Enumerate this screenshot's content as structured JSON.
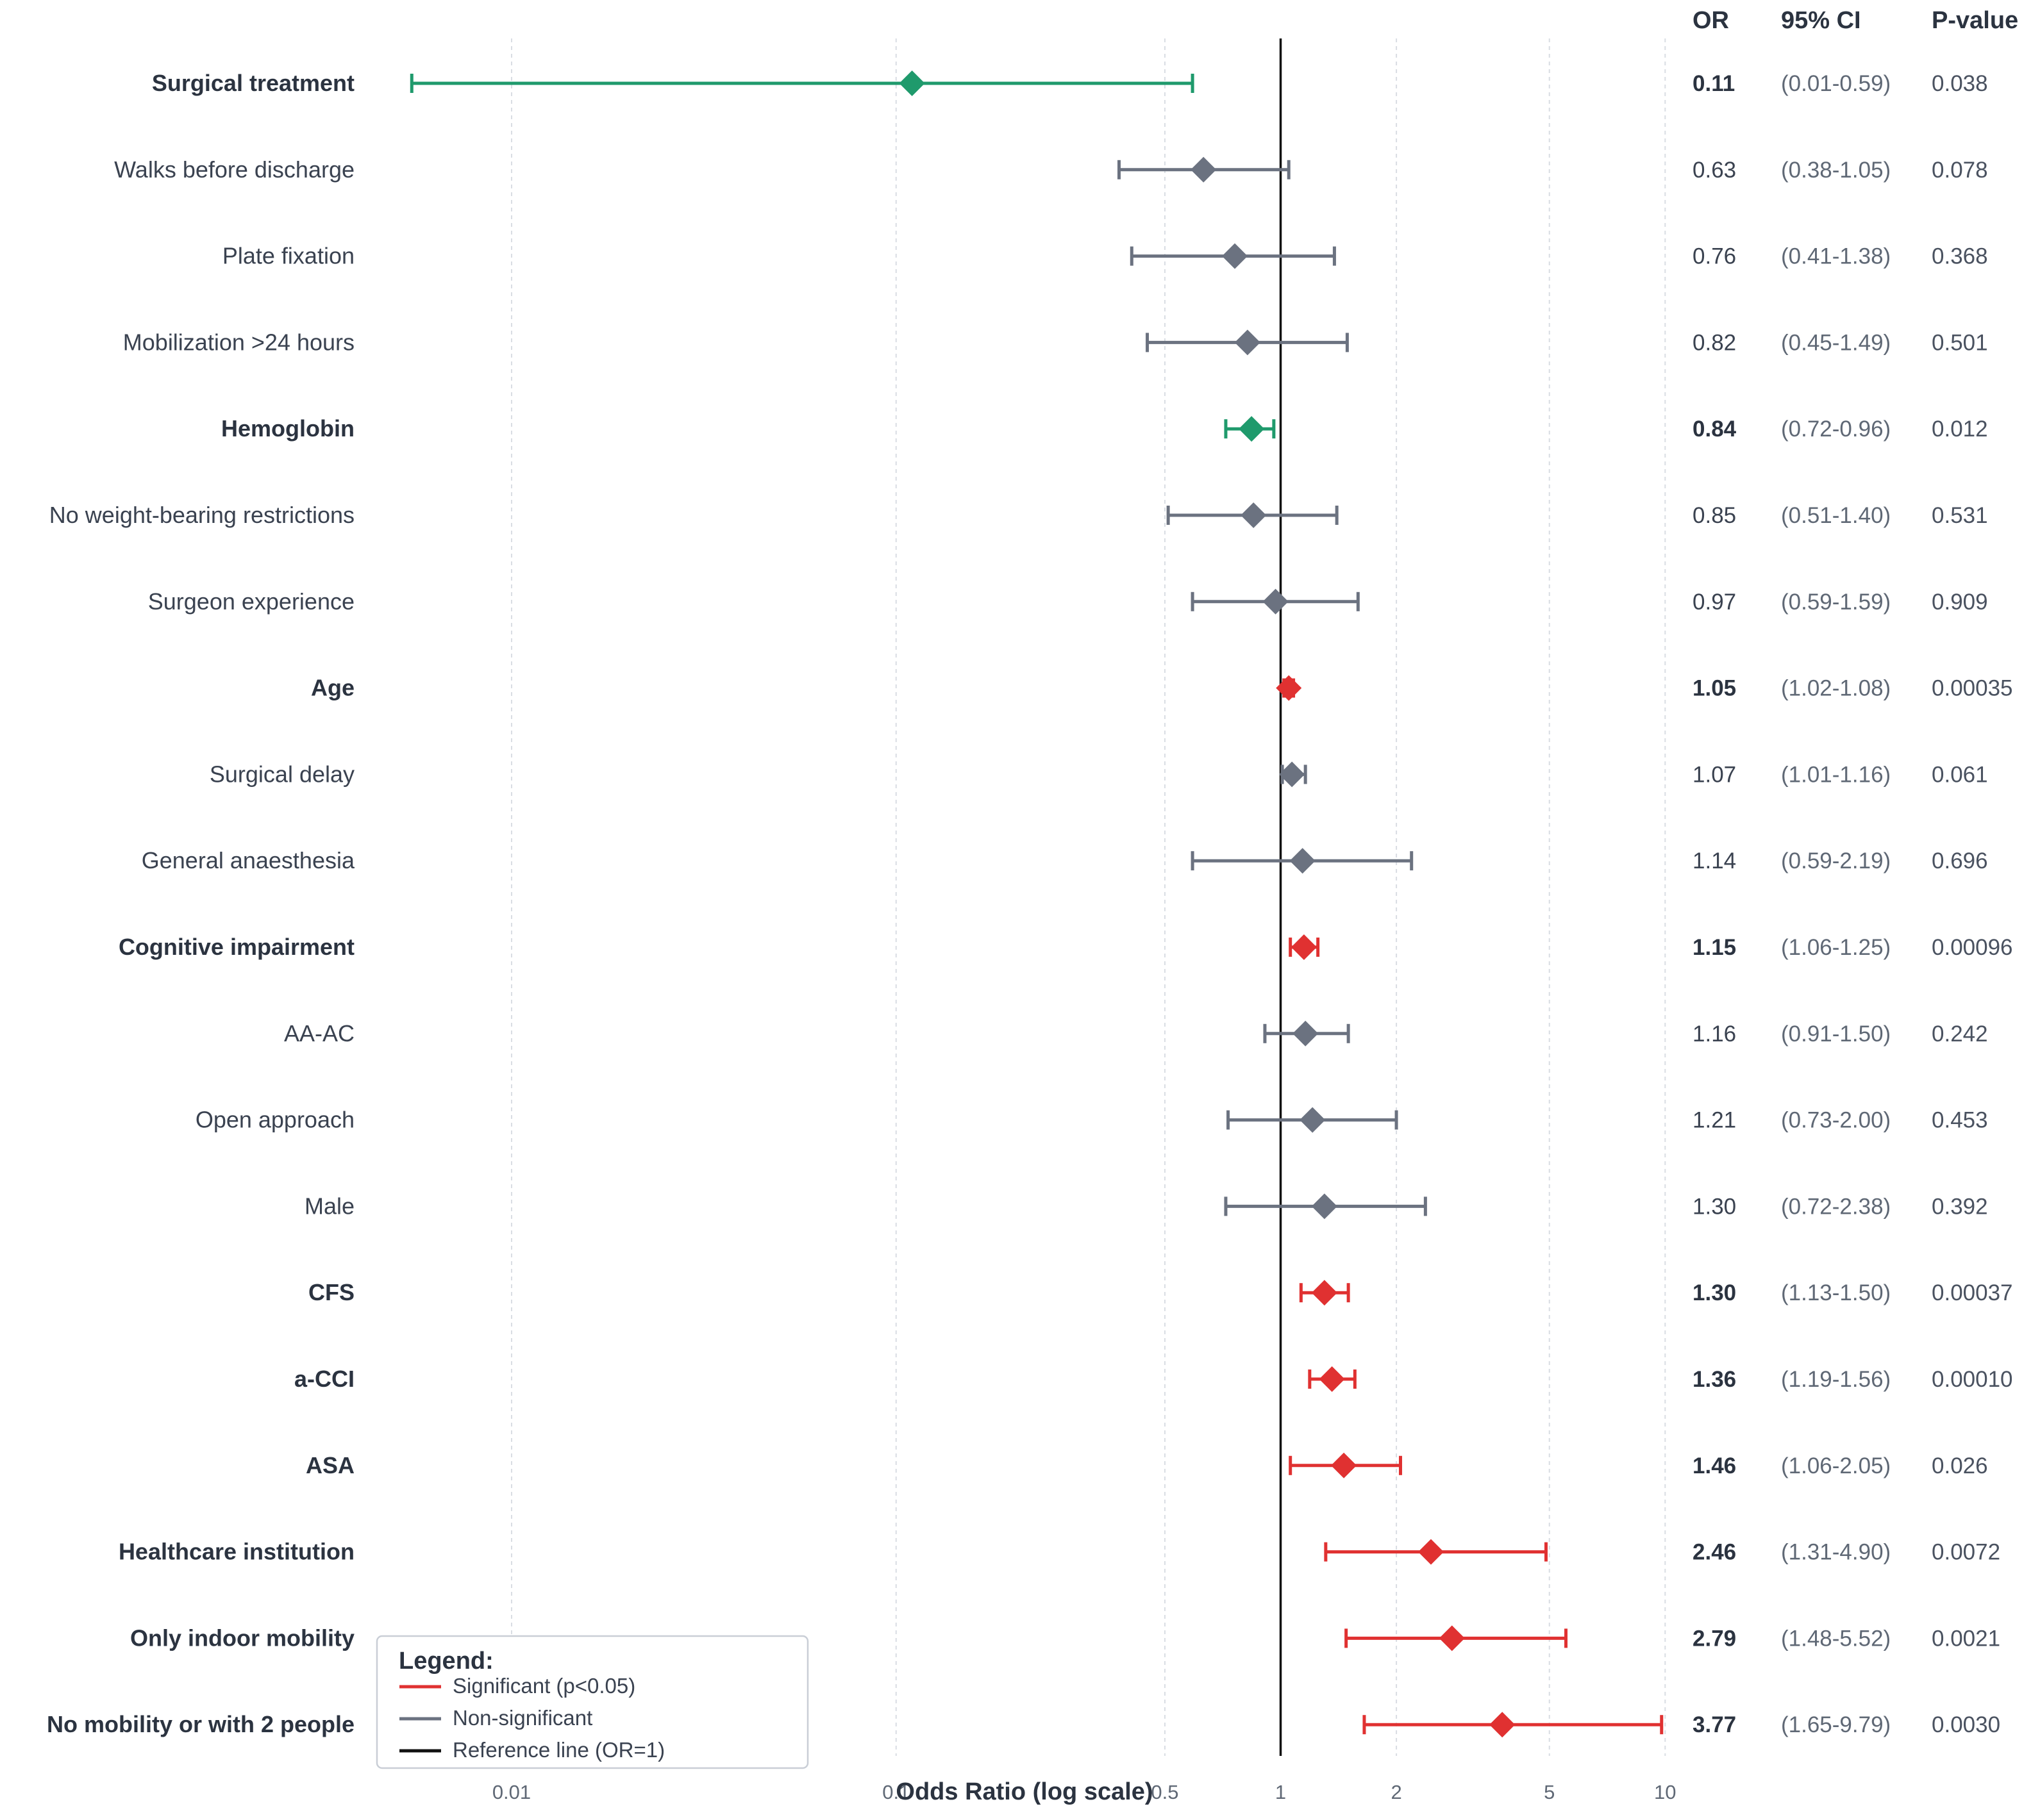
{
  "colors": {
    "significant": "#e03131",
    "protective": "#1f9a6c",
    "nonsignificant": "#6b7280",
    "reference": "#111111",
    "grid": "#d9dde3"
  },
  "chart_data": {
    "type": "forest",
    "xlabel": "Odds Ratio (log scale)",
    "xscale": "log",
    "xlim": [
      0.0045,
      10.5
    ],
    "xticks": [
      {
        "value": 0.01,
        "label": "0.01"
      },
      {
        "value": 0.1,
        "label": "0.1"
      },
      {
        "value": 0.5,
        "label": "0.5"
      },
      {
        "value": 1,
        "label": "1"
      },
      {
        "value": 2,
        "label": "2"
      },
      {
        "value": 5,
        "label": "5"
      },
      {
        "value": 10,
        "label": "10"
      }
    ],
    "reference_value": 1,
    "columns": {
      "or": "OR",
      "ci": "95% CI",
      "p": "P-value"
    },
    "legend": {
      "title": "Legend:",
      "placement": "bottom-left",
      "entries": [
        {
          "label": "Significant (p<0.05)",
          "color_key": "significant"
        },
        {
          "label": "Non-significant",
          "color_key": "nonsignificant"
        },
        {
          "label": "Reference line (OR=1)",
          "color_key": "reference"
        }
      ]
    },
    "rows": [
      {
        "label": "Surgical treatment",
        "or": 0.11,
        "lo": 0.0055,
        "hi": 0.59,
        "or_text": "0.11",
        "ci_text": "(0.01-0.59)",
        "p_text": "0.038",
        "significant": true
      },
      {
        "label": "Walks before discharge",
        "or": 0.63,
        "lo": 0.38,
        "hi": 1.05,
        "or_text": "0.63",
        "ci_text": "(0.38-1.05)",
        "p_text": "0.078",
        "significant": false
      },
      {
        "label": "Plate fixation",
        "or": 0.76,
        "lo": 0.41,
        "hi": 1.38,
        "or_text": "0.76",
        "ci_text": "(0.41-1.38)",
        "p_text": "0.368",
        "significant": false
      },
      {
        "label": "Mobilization >24 hours",
        "or": 0.82,
        "lo": 0.45,
        "hi": 1.49,
        "or_text": "0.82",
        "ci_text": "(0.45-1.49)",
        "p_text": "0.501",
        "significant": false
      },
      {
        "label": "Hemoglobin",
        "or": 0.84,
        "lo": 0.72,
        "hi": 0.96,
        "or_text": "0.84",
        "ci_text": "(0.72-0.96)",
        "p_text": "0.012",
        "significant": true
      },
      {
        "label": "No weight-bearing restrictions",
        "or": 0.85,
        "lo": 0.51,
        "hi": 1.4,
        "or_text": "0.85",
        "ci_text": "(0.51-1.40)",
        "p_text": "0.531",
        "significant": false
      },
      {
        "label": "Surgeon experience",
        "or": 0.97,
        "lo": 0.59,
        "hi": 1.59,
        "or_text": "0.97",
        "ci_text": "(0.59-1.59)",
        "p_text": "0.909",
        "significant": false
      },
      {
        "label": "Age",
        "or": 1.05,
        "lo": 1.02,
        "hi": 1.08,
        "or_text": "1.05",
        "ci_text": "(1.02-1.08)",
        "p_text": "0.00035",
        "significant": true
      },
      {
        "label": "Surgical delay",
        "or": 1.07,
        "lo": 1.01,
        "hi": 1.16,
        "or_text": "1.07",
        "ci_text": "(1.01-1.16)",
        "p_text": "0.061",
        "significant": false
      },
      {
        "label": "General anaesthesia",
        "or": 1.14,
        "lo": 0.59,
        "hi": 2.19,
        "or_text": "1.14",
        "ci_text": "(0.59-2.19)",
        "p_text": "0.696",
        "significant": false
      },
      {
        "label": "Cognitive impairment",
        "or": 1.15,
        "lo": 1.06,
        "hi": 1.25,
        "or_text": "1.15",
        "ci_text": "(1.06-1.25)",
        "p_text": "0.00096",
        "significant": true
      },
      {
        "label": "AA-AC",
        "or": 1.16,
        "lo": 0.91,
        "hi": 1.5,
        "or_text": "1.16",
        "ci_text": "(0.91-1.50)",
        "p_text": "0.242",
        "significant": false
      },
      {
        "label": "Open approach",
        "or": 1.21,
        "lo": 0.73,
        "hi": 2.0,
        "or_text": "1.21",
        "ci_text": "(0.73-2.00)",
        "p_text": "0.453",
        "significant": false
      },
      {
        "label": "Male",
        "or": 1.3,
        "lo": 0.72,
        "hi": 2.38,
        "or_text": "1.30",
        "ci_text": "(0.72-2.38)",
        "p_text": "0.392",
        "significant": false
      },
      {
        "label": "CFS",
        "or": 1.3,
        "lo": 1.13,
        "hi": 1.5,
        "or_text": "1.30",
        "ci_text": "(1.13-1.50)",
        "p_text": "0.00037",
        "significant": true
      },
      {
        "label": "a-CCI",
        "or": 1.36,
        "lo": 1.19,
        "hi": 1.56,
        "or_text": "1.36",
        "ci_text": "(1.19-1.56)",
        "p_text": "0.00010",
        "significant": true
      },
      {
        "label": "ASA",
        "or": 1.46,
        "lo": 1.06,
        "hi": 2.05,
        "or_text": "1.46",
        "ci_text": "(1.06-2.05)",
        "p_text": "0.026",
        "significant": true
      },
      {
        "label": "Healthcare institution",
        "or": 2.46,
        "lo": 1.31,
        "hi": 4.9,
        "or_text": "2.46",
        "ci_text": "(1.31-4.90)",
        "p_text": "0.0072",
        "significant": true
      },
      {
        "label": "Only indoor mobility",
        "or": 2.79,
        "lo": 1.48,
        "hi": 5.52,
        "or_text": "2.79",
        "ci_text": "(1.48-5.52)",
        "p_text": "0.0021",
        "significant": true
      },
      {
        "label": "No mobility or with 2 people",
        "or": 3.77,
        "lo": 1.65,
        "hi": 9.79,
        "or_text": "3.77",
        "ci_text": "(1.65-9.79)",
        "p_text": "0.0030",
        "significant": true
      }
    ]
  }
}
